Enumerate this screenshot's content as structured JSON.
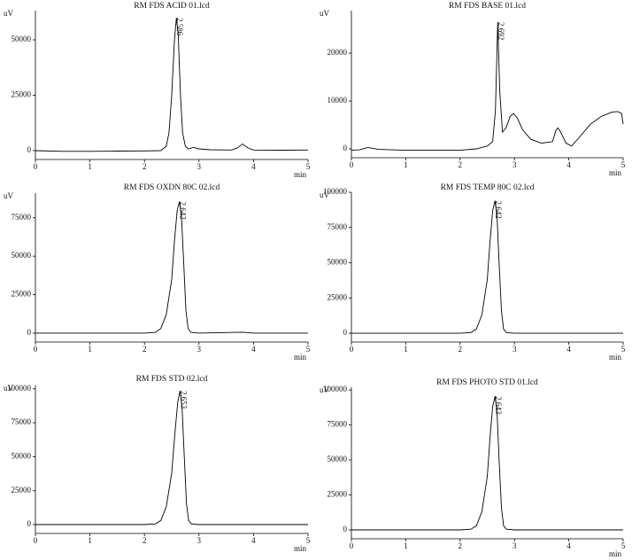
{
  "chart_data": [
    {
      "type": "line",
      "title": "RM FDS ACID 01.lcd",
      "y_label": "uV",
      "x_label": "min",
      "color": "#000000",
      "x": [
        0,
        0.5,
        1,
        1.5,
        2,
        2.3,
        2.4,
        2.45,
        2.5,
        2.55,
        2.586,
        2.62,
        2.66,
        2.7,
        2.75,
        2.8,
        2.9,
        3.0,
        3.2,
        3.6,
        3.7,
        3.8,
        3.9,
        4.0,
        4.5,
        5
      ],
      "values": [
        0,
        -300,
        -300,
        -200,
        -100,
        0,
        2000,
        8000,
        25000,
        50000,
        60000,
        52000,
        25000,
        8000,
        2000,
        800,
        1500,
        800,
        400,
        300,
        1200,
        3000,
        1200,
        300,
        200,
        300
      ],
      "peaks": [
        2.586
      ],
      "xlim": [
        0,
        5
      ],
      "xticks": [
        0,
        1,
        2,
        3,
        4,
        5
      ],
      "ylim": [
        -4000,
        63200
      ],
      "yticks": [
        0,
        25000,
        50000
      ]
    },
    {
      "type": "line",
      "title": "RM FDS BASE 01.lcd",
      "y_label": "uV",
      "x_label": "min",
      "color": "#000000",
      "x": [
        0,
        0.15,
        0.3,
        0.5,
        1,
        1.5,
        2,
        2.3,
        2.5,
        2.6,
        2.65,
        2.692,
        2.73,
        2.78,
        2.85,
        2.92,
        2.98,
        3.05,
        3.15,
        3.3,
        3.5,
        3.7,
        3.76,
        3.8,
        3.85,
        3.95,
        4.05,
        4.2,
        4.4,
        4.6,
        4.8,
        4.9,
        4.97,
        5
      ],
      "values": [
        -300,
        -200,
        300,
        -100,
        -300,
        -300,
        -300,
        0,
        600,
        1500,
        8000,
        26500,
        12000,
        3500,
        4500,
        6800,
        7400,
        6500,
        4000,
        2000,
        1200,
        1500,
        3800,
        4400,
        3500,
        1200,
        600,
        2500,
        5200,
        6800,
        7700,
        7800,
        7400,
        5200
      ],
      "peaks": [
        2.692
      ],
      "xlim": [
        0,
        5
      ],
      "xticks": [
        0,
        1,
        2,
        3,
        4,
        5
      ],
      "ylim": [
        -1850,
        28900
      ],
      "yticks": [
        0,
        10000,
        20000
      ]
    },
    {
      "type": "line",
      "title": "RM FDS OXDN 80C 02.lcd",
      "y_label": "uV",
      "x_label": "min",
      "color": "#000000",
      "x": [
        0,
        1,
        2,
        2.2,
        2.3,
        2.4,
        2.5,
        2.55,
        2.6,
        2.642,
        2.68,
        2.72,
        2.76,
        2.8,
        2.85,
        3,
        3.8,
        4,
        5
      ],
      "values": [
        0,
        0,
        0,
        500,
        3000,
        12000,
        35000,
        60000,
        80000,
        85500,
        75000,
        45000,
        15000,
        3000,
        500,
        0,
        600,
        0,
        0
      ],
      "peaks": [
        2.642
      ],
      "xlim": [
        0,
        5
      ],
      "xticks": [
        0,
        1,
        2,
        3,
        4,
        5
      ],
      "ylim": [
        -5800,
        91000
      ],
      "yticks": [
        0,
        25000,
        50000,
        75000
      ]
    },
    {
      "type": "line",
      "title": "RM FDS TEMP 80C 02.lcd",
      "y_label": "uV",
      "x_label": "min",
      "color": "#000000",
      "x": [
        0,
        1,
        2,
        2.2,
        2.3,
        2.4,
        2.5,
        2.55,
        2.6,
        2.642,
        2.68,
        2.72,
        2.76,
        2.8,
        2.85,
        3,
        4,
        5
      ],
      "values": [
        0,
        0,
        0,
        500,
        3000,
        13000,
        38000,
        65000,
        87000,
        94000,
        82000,
        48000,
        16000,
        3000,
        500,
        0,
        0,
        0
      ],
      "peaks": [
        2.642
      ],
      "xlim": [
        0,
        5
      ],
      "xticks": [
        0,
        1,
        2,
        3,
        4,
        5
      ],
      "ylim": [
        -6250,
        100000
      ],
      "yticks": [
        0,
        25000,
        50000,
        75000,
        100000
      ]
    },
    {
      "type": "line",
      "title": "RM FDS STD 02.lcd",
      "y_label": "uV",
      "x_label": "min",
      "color": "#000000",
      "x": [
        0,
        1,
        2,
        2.2,
        2.3,
        2.4,
        2.5,
        2.56,
        2.61,
        2.653,
        2.69,
        2.73,
        2.77,
        2.81,
        2.86,
        3,
        4,
        5
      ],
      "values": [
        0,
        0,
        0,
        500,
        3000,
        13000,
        38000,
        68000,
        90000,
        98600,
        86000,
        50000,
        16000,
        3000,
        500,
        0,
        0,
        0
      ],
      "peaks": [
        2.653
      ],
      "xlim": [
        0,
        5
      ],
      "xticks": [
        0,
        1,
        2,
        3,
        4,
        5
      ],
      "ylim": [
        -6500,
        102500
      ],
      "yticks": [
        0,
        25000,
        50000,
        75000,
        100000
      ]
    },
    {
      "type": "line",
      "title": "RM FDS PHOTO STD 01.lcd",
      "y_label": "uV",
      "x_label": "min",
      "color": "#000000",
      "x": [
        0,
        1,
        2,
        2.2,
        2.3,
        2.4,
        2.5,
        2.55,
        2.6,
        2.643,
        2.68,
        2.72,
        2.76,
        2.8,
        2.85,
        3,
        4,
        5
      ],
      "values": [
        0,
        0,
        0,
        500,
        3000,
        13000,
        38000,
        66000,
        88000,
        95600,
        83000,
        48000,
        16000,
        3000,
        500,
        0,
        0,
        0
      ],
      "peaks": [
        2.643
      ],
      "xlim": [
        0,
        5
      ],
      "xticks": [
        0,
        1,
        2,
        3,
        4,
        5
      ],
      "ylim": [
        -6330,
        102000
      ],
      "yticks": [
        0,
        25000,
        50000,
        75000,
        100000
      ]
    }
  ]
}
